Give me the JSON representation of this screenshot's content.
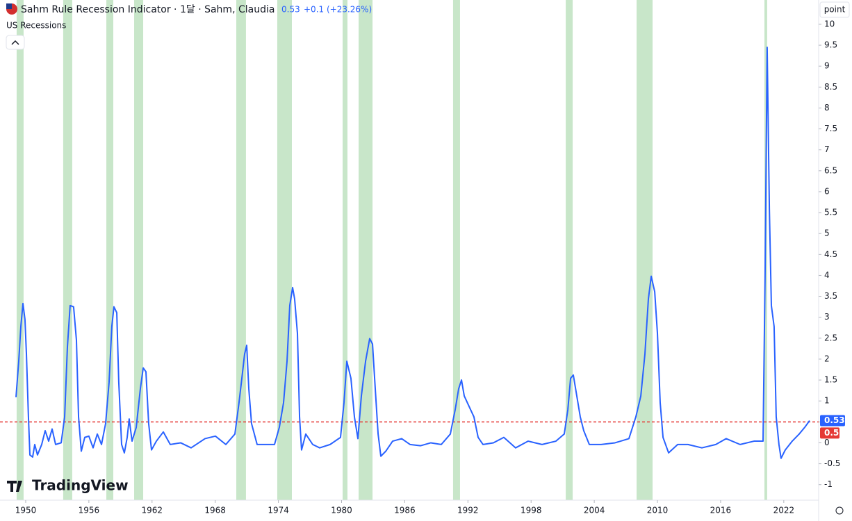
{
  "chart_data": {
    "type": "line",
    "title": "Sahm Rule Recession Indicator · 1달 · Sahm, Claudia",
    "change_label": "+0.1 (+23.26%)",
    "unit_label": "point",
    "watermark": "TradingView",
    "threshold": 0.5,
    "threshold_color": "#e53935",
    "recessions": {
      "name": "US Recessions",
      "color": "#c8e6c9",
      "periods": [
        [
          1949.14,
          1949.8
        ],
        [
          1953.56,
          1954.42
        ],
        [
          1957.66,
          1958.32
        ],
        [
          1960.3,
          1961.16
        ],
        [
          1970.0,
          1970.92
        ],
        [
          1973.89,
          1975.28
        ],
        [
          1980.1,
          1980.56
        ],
        [
          1981.62,
          1982.94
        ],
        [
          1990.59,
          1991.25
        ],
        [
          2001.29,
          2001.95
        ],
        [
          2008.02,
          2009.54
        ],
        [
          2020.16,
          2020.42
        ]
      ]
    },
    "x": [
      1949.08,
      1949.34,
      1949.54,
      1949.74,
      1949.93,
      1950.07,
      1950.26,
      1950.4,
      1950.66,
      1950.86,
      1951.12,
      1951.52,
      1951.85,
      1952.18,
      1952.51,
      1952.84,
      1953.37,
      1953.7,
      1953.96,
      1954.22,
      1954.55,
      1954.82,
      1955.02,
      1955.28,
      1955.61,
      1956.0,
      1956.4,
      1956.8,
      1957.2,
      1957.59,
      1957.92,
      1958.18,
      1958.38,
      1958.65,
      1958.84,
      1959.11,
      1959.37,
      1959.64,
      1959.83,
      1960.1,
      1960.5,
      1960.89,
      1961.16,
      1961.42,
      1961.68,
      1961.95,
      1962.41,
      1963.07,
      1963.73,
      1964.72,
      1965.71,
      1967.03,
      1968.02,
      1969.01,
      1969.87,
      1970.26,
      1970.53,
      1970.79,
      1970.99,
      1971.19,
      1971.45,
      1971.98,
      1972.97,
      1973.63,
      1974.09,
      1974.49,
      1974.82,
      1975.08,
      1975.35,
      1975.54,
      1975.81,
      1976.01,
      1976.2,
      1976.6,
      1977.26,
      1977.92,
      1978.91,
      1979.9,
      1980.23,
      1980.5,
      1980.89,
      1981.22,
      1981.55,
      1981.88,
      1982.28,
      1982.67,
      1982.94,
      1983.2,
      1983.47,
      1983.73,
      1984.2,
      1984.85,
      1985.71,
      1986.5,
      1987.49,
      1988.48,
      1989.47,
      1990.33,
      1990.79,
      1991.12,
      1991.39,
      1991.65,
      1992.11,
      1992.57,
      1992.97,
      1993.43,
      1994.42,
      1995.41,
      1996.53,
      1997.72,
      1999.04,
      2000.36,
      2001.15,
      2001.49,
      2001.75,
      2002.01,
      2002.34,
      2002.67,
      2003.0,
      2003.53,
      2004.65,
      2005.97,
      2007.29,
      2007.95,
      2008.42,
      2008.81,
      2009.14,
      2009.41,
      2009.74,
      2010.0,
      2010.26,
      2010.53,
      2011.06,
      2011.92,
      2012.9,
      2014.22,
      2015.54,
      2016.53,
      2017.85,
      2019.17,
      2020.03,
      2020.22,
      2020.42,
      2020.63,
      2020.82,
      2021.08,
      2021.28,
      2021.54,
      2021.74,
      2022.14,
      2022.8,
      2023.46,
      2023.99,
      2024.45
    ],
    "series": [
      {
        "name": "Sahm Rule Recession Indicator",
        "color": "#2962ff",
        "values": [
          1.09,
          1.95,
          2.78,
          3.33,
          2.95,
          2.12,
          0.62,
          -0.29,
          -0.34,
          -0.04,
          -0.29,
          -0.04,
          0.29,
          0.04,
          0.33,
          -0.04,
          0,
          0.62,
          2.28,
          3.28,
          3.25,
          2.45,
          0.62,
          -0.2,
          0.13,
          0.16,
          -0.12,
          0.21,
          -0.04,
          0.46,
          1.45,
          2.78,
          3.25,
          3.11,
          1.45,
          -0.04,
          -0.24,
          0.13,
          0.57,
          0.04,
          0.37,
          1.29,
          1.79,
          1.7,
          0.46,
          -0.17,
          0.04,
          0.26,
          -0.04,
          0,
          -0.12,
          0.1,
          0.16,
          -0.04,
          0.21,
          0.96,
          1.54,
          2.12,
          2.33,
          1.29,
          0.46,
          -0.04,
          -0.04,
          -0.04,
          0.37,
          0.96,
          1.95,
          3.28,
          3.71,
          3.44,
          2.61,
          0.62,
          -0.17,
          0.21,
          -0.04,
          -0.12,
          -0.04,
          0.13,
          0.96,
          1.95,
          1.54,
          0.62,
          0.1,
          1.12,
          1.95,
          2.49,
          2.36,
          1.29,
          0.21,
          -0.32,
          -0.2,
          0.04,
          0.1,
          -0.04,
          -0.07,
          0,
          -0.04,
          0.21,
          0.79,
          1.29,
          1.5,
          1.12,
          0.87,
          0.62,
          0.13,
          -0.04,
          0,
          0.13,
          -0.12,
          0.04,
          -0.04,
          0.04,
          0.21,
          0.79,
          1.54,
          1.62,
          1.12,
          0.62,
          0.29,
          -0.04,
          -0.04,
          0,
          0.1,
          0.62,
          1.12,
          2.12,
          3.44,
          3.98,
          3.61,
          2.61,
          0.96,
          0.13,
          -0.24,
          -0.04,
          -0.04,
          -0.12,
          -0.04,
          0.1,
          -0.04,
          0.04,
          0.04,
          3.94,
          9.45,
          5.6,
          3.28,
          2.78,
          0.62,
          -0.04,
          -0.37,
          -0.17,
          0.04,
          0.21,
          0.37,
          0.53
        ]
      }
    ],
    "xlim": [
      1947.56,
      2025.31
    ],
    "xticks": [
      1950,
      1956,
      1962,
      1968,
      1974,
      1980,
      1986,
      1992,
      1998,
      2004,
      2010,
      2016,
      2022
    ],
    "ylim": [
      -1.37,
      10.58
    ],
    "yticks": [
      10,
      9.5,
      9,
      8.5,
      8,
      7.5,
      7,
      6.5,
      6,
      5.5,
      5,
      4.5,
      4,
      3.5,
      3,
      2.5,
      2,
      1.5,
      1,
      0.5,
      0,
      -0.5,
      -1
    ],
    "grid": false
  }
}
